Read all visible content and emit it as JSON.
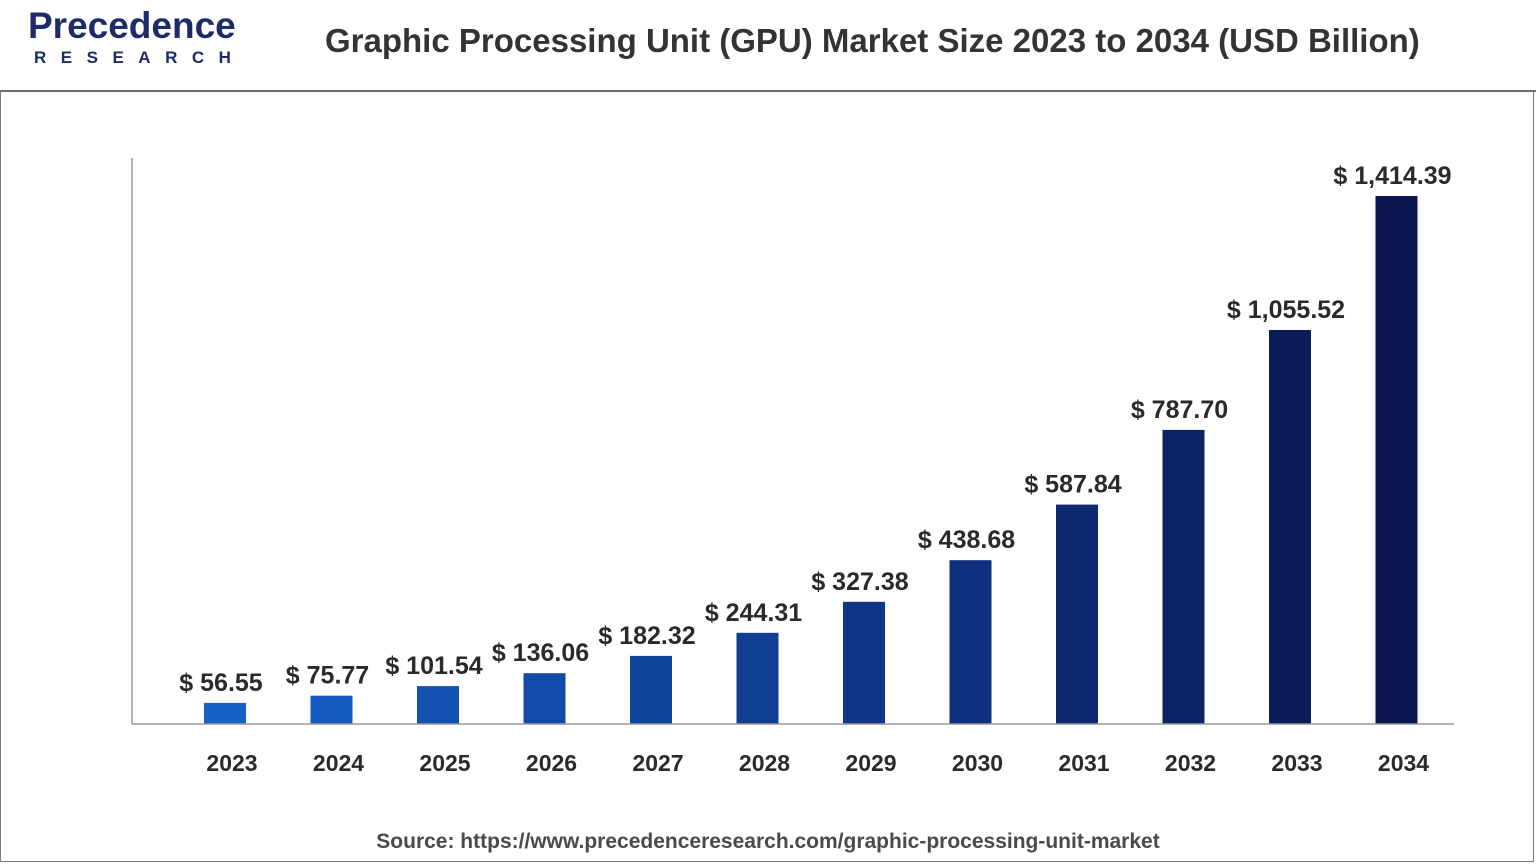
{
  "brand": {
    "name": "Precedence",
    "sub": "RESEARCH"
  },
  "title": "Graphic Processing Unit (GPU) Market Size 2023 to 2034 (USD Billion)",
  "source": "Source: https://www.precedenceresearch.com/graphic-processing-unit-market",
  "colors": {
    "bar_start": "#1560c9",
    "bar_end": "#0b1550",
    "axis": "#9a9a9a",
    "label": "#2a2a2a"
  },
  "chart_data": {
    "type": "bar",
    "title": "Graphic Processing Unit (GPU) Market Size 2023 to 2034 (USD Billion)",
    "categories": [
      "2023",
      "2024",
      "2025",
      "2026",
      "2027",
      "2028",
      "2029",
      "2030",
      "2031",
      "2032",
      "2033",
      "2034"
    ],
    "values": [
      56.55,
      75.77,
      101.54,
      136.06,
      182.32,
      244.31,
      327.38,
      438.68,
      587.84,
      787.7,
      1055.52,
      1414.39
    ],
    "data_labels": [
      "$ 56.55",
      "$ 75.77",
      "$ 101.54",
      "$ 136.06",
      "$ 182.32",
      "$ 244.31",
      "$ 327.38",
      "$ 438.68",
      "$ 587.84",
      "$ 787.70",
      "$ 1,055.52",
      "$ 1,414.39"
    ],
    "xlabel": "",
    "ylabel": "",
    "ylim": [
      0,
      1550
    ],
    "grid": false,
    "legend": "none"
  }
}
